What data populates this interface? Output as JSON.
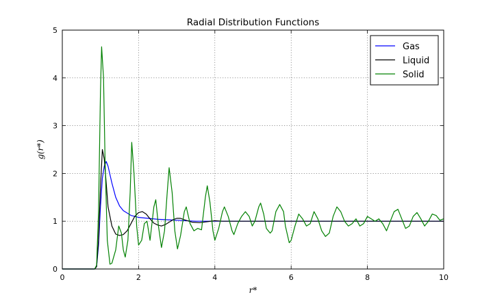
{
  "chart_data": {
    "type": "line",
    "title": "Radial Distribution Functions",
    "xlabel": "r*",
    "ylabel": "g(r*)",
    "xlim": [
      0,
      10
    ],
    "ylim": [
      0,
      5
    ],
    "x_ticks": [
      "0",
      "2",
      "4",
      "6",
      "8",
      "10"
    ],
    "y_ticks": [
      "0",
      "1",
      "2",
      "3",
      "4",
      "5"
    ],
    "grid": true,
    "legend_position": "top-right",
    "series": [
      {
        "name": "Gas",
        "color": "#0000ff",
        "points": [
          [
            0,
            0
          ],
          [
            0.85,
            0
          ],
          [
            0.9,
            0.05
          ],
          [
            0.95,
            0.5
          ],
          [
            1.0,
            1.3
          ],
          [
            1.05,
            1.9
          ],
          [
            1.1,
            2.15
          ],
          [
            1.15,
            2.25
          ],
          [
            1.2,
            2.15
          ],
          [
            1.3,
            1.8
          ],
          [
            1.4,
            1.5
          ],
          [
            1.5,
            1.32
          ],
          [
            1.6,
            1.22
          ],
          [
            1.8,
            1.12
          ],
          [
            2.0,
            1.08
          ],
          [
            2.5,
            1.04
          ],
          [
            3.0,
            1.02
          ],
          [
            3.5,
            1.0
          ],
          [
            4.0,
            1.0
          ],
          [
            10.0,
            1.0
          ]
        ]
      },
      {
        "name": "Liquid",
        "color": "#000000",
        "points": [
          [
            0,
            0
          ],
          [
            0.85,
            0
          ],
          [
            0.9,
            0.05
          ],
          [
            0.95,
            0.6
          ],
          [
            1.0,
            1.7
          ],
          [
            1.05,
            2.5
          ],
          [
            1.1,
            2.3
          ],
          [
            1.15,
            1.8
          ],
          [
            1.2,
            1.3
          ],
          [
            1.3,
            0.9
          ],
          [
            1.4,
            0.73
          ],
          [
            1.5,
            0.7
          ],
          [
            1.6,
            0.72
          ],
          [
            1.7,
            0.8
          ],
          [
            1.8,
            0.95
          ],
          [
            1.9,
            1.1
          ],
          [
            2.0,
            1.18
          ],
          [
            2.1,
            1.2
          ],
          [
            2.2,
            1.15
          ],
          [
            2.3,
            1.05
          ],
          [
            2.4,
            0.96
          ],
          [
            2.5,
            0.92
          ],
          [
            2.6,
            0.9
          ],
          [
            2.7,
            0.93
          ],
          [
            2.8,
            0.98
          ],
          [
            2.9,
            1.03
          ],
          [
            3.0,
            1.06
          ],
          [
            3.1,
            1.06
          ],
          [
            3.2,
            1.03
          ],
          [
            3.4,
            0.98
          ],
          [
            3.6,
            0.97
          ],
          [
            3.8,
            0.99
          ],
          [
            4.0,
            1.01
          ],
          [
            4.2,
            1.0
          ],
          [
            5.0,
            1.0
          ],
          [
            10.0,
            1.0
          ]
        ]
      },
      {
        "name": "Solid",
        "color": "#008000",
        "points": [
          [
            0,
            0
          ],
          [
            0.85,
            0
          ],
          [
            0.9,
            0.08
          ],
          [
            0.95,
            1.2
          ],
          [
            1.0,
            3.7
          ],
          [
            1.03,
            4.65
          ],
          [
            1.08,
            4.0
          ],
          [
            1.12,
            2.3
          ],
          [
            1.18,
            0.6
          ],
          [
            1.25,
            0.1
          ],
          [
            1.3,
            0.12
          ],
          [
            1.4,
            0.4
          ],
          [
            1.48,
            0.9
          ],
          [
            1.55,
            0.75
          ],
          [
            1.6,
            0.4
          ],
          [
            1.65,
            0.25
          ],
          [
            1.72,
            0.6
          ],
          [
            1.78,
            1.6
          ],
          [
            1.82,
            2.65
          ],
          [
            1.88,
            2.0
          ],
          [
            1.95,
            0.9
          ],
          [
            2.0,
            0.5
          ],
          [
            2.08,
            0.6
          ],
          [
            2.15,
            0.95
          ],
          [
            2.22,
            1.0
          ],
          [
            2.3,
            0.6
          ],
          [
            2.4,
            1.3
          ],
          [
            2.45,
            1.45
          ],
          [
            2.52,
            0.9
          ],
          [
            2.6,
            0.45
          ],
          [
            2.68,
            0.8
          ],
          [
            2.75,
            1.6
          ],
          [
            2.8,
            2.12
          ],
          [
            2.88,
            1.6
          ],
          [
            2.95,
            0.8
          ],
          [
            3.02,
            0.42
          ],
          [
            3.1,
            0.7
          ],
          [
            3.2,
            1.2
          ],
          [
            3.25,
            1.3
          ],
          [
            3.35,
            0.95
          ],
          [
            3.45,
            0.8
          ],
          [
            3.55,
            0.85
          ],
          [
            3.65,
            0.82
          ],
          [
            3.75,
            1.5
          ],
          [
            3.8,
            1.74
          ],
          [
            3.87,
            1.4
          ],
          [
            3.95,
            0.8
          ],
          [
            4.0,
            0.6
          ],
          [
            4.1,
            0.85
          ],
          [
            4.2,
            1.2
          ],
          [
            4.25,
            1.3
          ],
          [
            4.35,
            1.1
          ],
          [
            4.45,
            0.8
          ],
          [
            4.5,
            0.72
          ],
          [
            4.6,
            0.95
          ],
          [
            4.7,
            1.1
          ],
          [
            4.8,
            1.2
          ],
          [
            4.9,
            1.1
          ],
          [
            4.98,
            0.9
          ],
          [
            5.05,
            1.0
          ],
          [
            5.15,
            1.3
          ],
          [
            5.2,
            1.38
          ],
          [
            5.28,
            1.15
          ],
          [
            5.35,
            0.85
          ],
          [
            5.45,
            0.75
          ],
          [
            5.5,
            0.8
          ],
          [
            5.6,
            1.2
          ],
          [
            5.7,
            1.35
          ],
          [
            5.8,
            1.2
          ],
          [
            5.85,
            0.9
          ],
          [
            5.95,
            0.55
          ],
          [
            6.0,
            0.6
          ],
          [
            6.1,
            0.9
          ],
          [
            6.2,
            1.15
          ],
          [
            6.3,
            1.05
          ],
          [
            6.4,
            0.9
          ],
          [
            6.5,
            0.95
          ],
          [
            6.6,
            1.2
          ],
          [
            6.7,
            1.05
          ],
          [
            6.8,
            0.8
          ],
          [
            6.9,
            0.68
          ],
          [
            7.0,
            0.75
          ],
          [
            7.1,
            1.1
          ],
          [
            7.2,
            1.3
          ],
          [
            7.3,
            1.2
          ],
          [
            7.4,
            1.0
          ],
          [
            7.5,
            0.9
          ],
          [
            7.6,
            0.95
          ],
          [
            7.7,
            1.05
          ],
          [
            7.8,
            0.9
          ],
          [
            7.9,
            0.95
          ],
          [
            8.0,
            1.1
          ],
          [
            8.1,
            1.05
          ],
          [
            8.2,
            1.0
          ],
          [
            8.3,
            1.05
          ],
          [
            8.4,
            0.95
          ],
          [
            8.5,
            0.8
          ],
          [
            8.6,
            1.0
          ],
          [
            8.7,
            1.2
          ],
          [
            8.8,
            1.25
          ],
          [
            8.9,
            1.05
          ],
          [
            9.0,
            0.85
          ],
          [
            9.1,
            0.9
          ],
          [
            9.2,
            1.1
          ],
          [
            9.3,
            1.18
          ],
          [
            9.4,
            1.05
          ],
          [
            9.5,
            0.9
          ],
          [
            9.6,
            1.0
          ],
          [
            9.7,
            1.15
          ],
          [
            9.8,
            1.12
          ],
          [
            9.9,
            1.02
          ],
          [
            10.0,
            1.05
          ]
        ]
      }
    ]
  }
}
